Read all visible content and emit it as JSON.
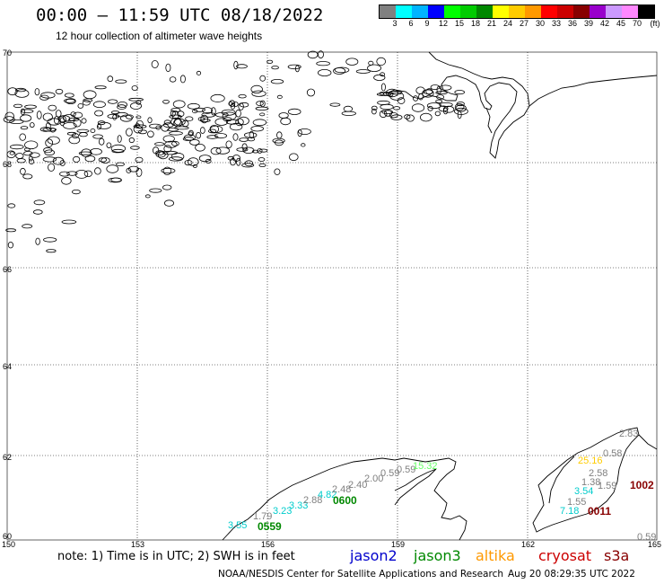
{
  "header": {
    "title": "00:00 – 11:59 UTC 08/18/2022",
    "subtitle": "12 hour collection of altimeter wave heights"
  },
  "legend": {
    "colors": [
      "#808080",
      "#00ffff",
      "#00b4ff",
      "#0000ff",
      "#00ff00",
      "#00cc00",
      "#008800",
      "#ffff00",
      "#ffcc00",
      "#ff9900",
      "#ff0000",
      "#cc0000",
      "#880000",
      "#9900cc",
      "#cc99ff",
      "#ff88ff",
      "#000000"
    ],
    "labels": [
      "3",
      "6",
      "9",
      "12",
      "15",
      "18",
      "21",
      "24",
      "27",
      "30",
      "33",
      "36",
      "39",
      "42",
      "45",
      "70",
      "(ft)"
    ]
  },
  "axes": {
    "lon_labels": [
      "150",
      "153",
      "156",
      "159",
      "162",
      "165"
    ],
    "lat_labels": [
      "70",
      "68",
      "66",
      "64",
      "62",
      "60"
    ]
  },
  "observations": [
    {
      "text": "3.55",
      "color": "#00cccc"
    },
    {
      "text": "1.79",
      "color": "#808080"
    },
    {
      "text": "3.23",
      "color": "#00cccc"
    },
    {
      "text": "3.33",
      "color": "#00cccc"
    },
    {
      "text": "2.88",
      "color": "#808080"
    },
    {
      "text": "4.82",
      "color": "#00cccc"
    },
    {
      "text": "2.48",
      "color": "#808080"
    },
    {
      "text": "2.40",
      "color": "#808080"
    },
    {
      "text": "2.00",
      "color": "#808080"
    },
    {
      "text": "0.59",
      "color": "#808080"
    },
    {
      "text": "0.59",
      "color": "#808080"
    },
    {
      "text": "15.32",
      "color": "#66ff66"
    },
    {
      "text": "2.83",
      "color": "#808080"
    },
    {
      "text": "0.58",
      "color": "#808080"
    },
    {
      "text": "25.16",
      "color": "#ffcc00"
    },
    {
      "text": "2.58",
      "color": "#808080"
    },
    {
      "text": "1.38",
      "color": "#808080"
    },
    {
      "text": "1.59",
      "color": "#808080"
    },
    {
      "text": "3.54",
      "color": "#00cccc"
    },
    {
      "text": "1.55",
      "color": "#808080"
    },
    {
      "text": "7.18",
      "color": "#00cccc"
    },
    {
      "text": "0.59",
      "color": "#808080"
    }
  ],
  "passes": [
    {
      "text": "0559",
      "color": "#008800"
    },
    {
      "text": "0600",
      "color": "#008800"
    },
    {
      "text": "0011",
      "color": "#880000"
    },
    {
      "text": "1002",
      "color": "#880000"
    }
  ],
  "note": "note:  1) Time is in UTC;  2) SWH is in feet",
  "satellites": [
    {
      "name": "jason2",
      "color": "#0000cc"
    },
    {
      "name": "jason3",
      "color": "#008800"
    },
    {
      "name": "altika",
      "color": "#ff9900"
    },
    {
      "name": "cryosat",
      "color": "#cc0000"
    },
    {
      "name": "s3a",
      "color": "#880000"
    }
  ],
  "footer": {
    "credit": "NOAA/NESDIS Center for Satellite Applications and Research",
    "timestamp": "Aug 20 08:29:35 UTC 2022"
  }
}
